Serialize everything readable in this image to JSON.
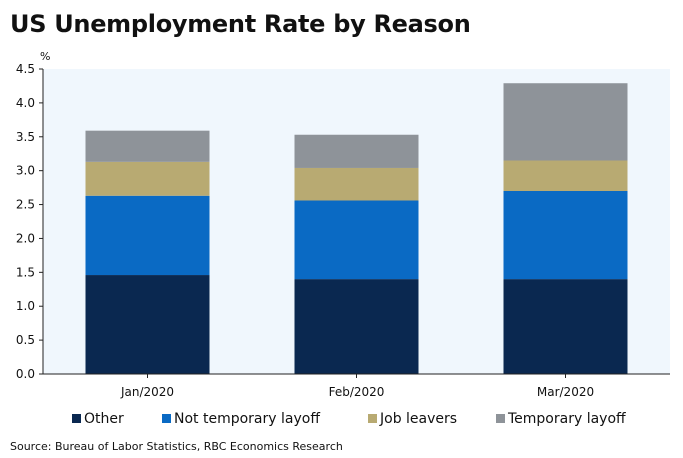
{
  "header": {
    "title": "US Unemployment Rate by Reason"
  },
  "chart_data": {
    "type": "bar",
    "stacked": true,
    "title": "US Unemployment Rate by Reason",
    "unit_label": "%",
    "xlabel": "",
    "ylabel": "%",
    "ylim": [
      0,
      4.5
    ],
    "yticks": [
      "0.0",
      "0.5",
      "1.0",
      "1.5",
      "2.0",
      "2.5",
      "3.0",
      "3.5",
      "4.0",
      "4.5"
    ],
    "categories": [
      "Jan/2020",
      "Feb/2020",
      "Mar/2020"
    ],
    "series": [
      {
        "name": "Other",
        "color": "#0a2850",
        "values": [
          1.46,
          1.4,
          1.4
        ]
      },
      {
        "name": "Not temporary layoff",
        "color": "#0a6ac4",
        "values": [
          1.17,
          1.16,
          1.3
        ]
      },
      {
        "name": "Job leavers",
        "color": "#b8aa72",
        "values": [
          0.5,
          0.48,
          0.45
        ]
      },
      {
        "name": "Temporary layoff",
        "color": "#8e9399",
        "values": [
          0.46,
          0.49,
          1.14
        ]
      }
    ],
    "legend_position": "bottom",
    "grid": false,
    "plot_background": "#f0f7fd"
  },
  "footer": {
    "source": "Source: Bureau of Labor Statistics, RBC Economics Research"
  }
}
